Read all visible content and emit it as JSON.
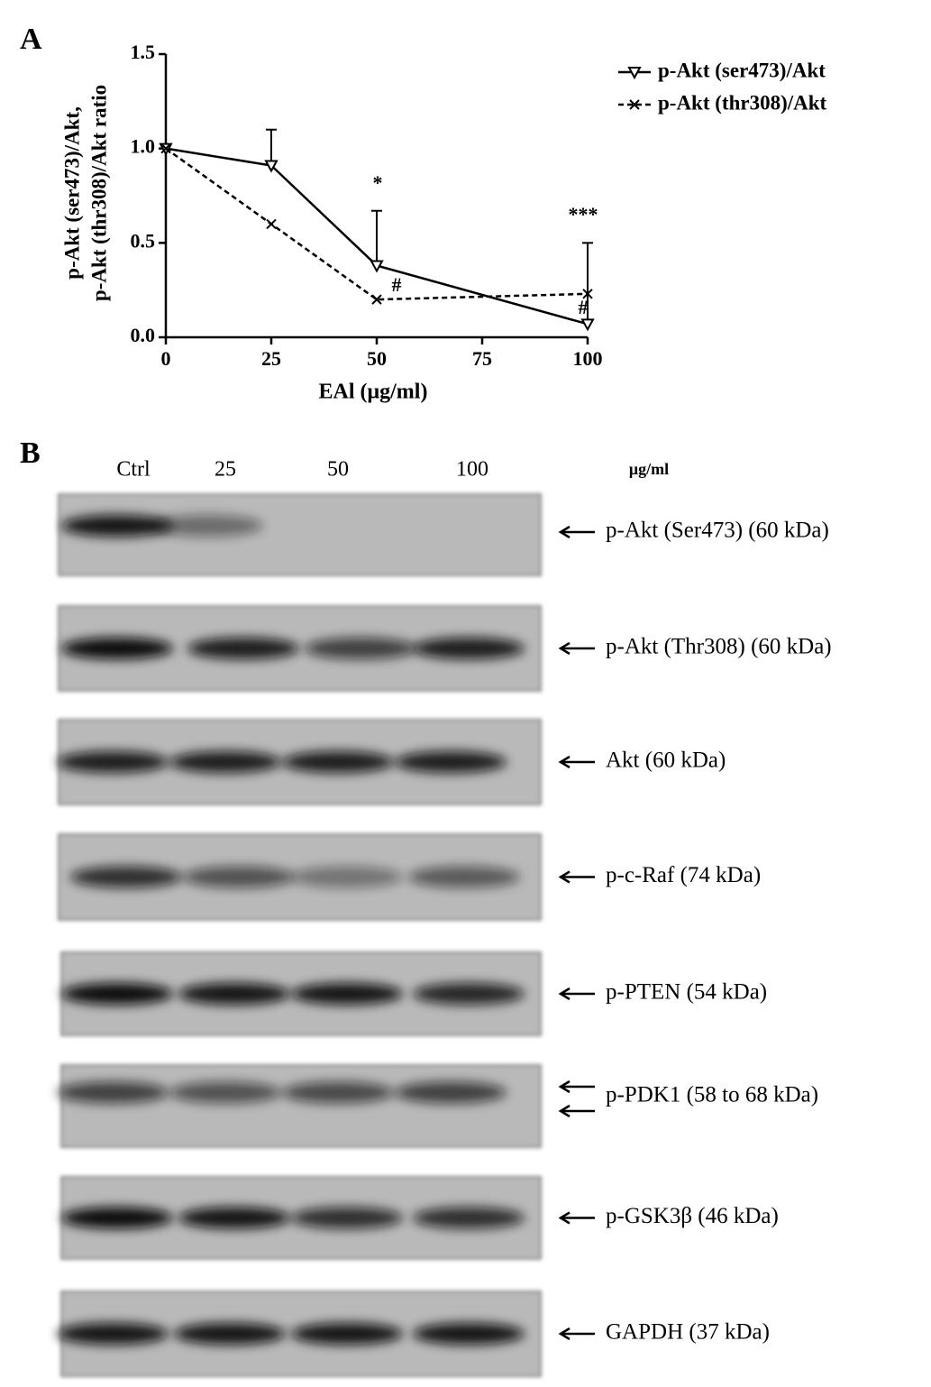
{
  "chart_data": {
    "type": "line",
    "panel_label": "A",
    "x": [
      0,
      25,
      50,
      100
    ],
    "series": [
      {
        "name": "p-Akt (ser473)/Akt",
        "color": "#000000",
        "dash": false,
        "marker": "triangle-down",
        "values": [
          1.0,
          0.91,
          0.38,
          0.07
        ],
        "errors": [
          0,
          0.19,
          0.29,
          0.43
        ]
      },
      {
        "name": "p-Akt (thr308)/Akt",
        "color": "#000000",
        "dash": true,
        "marker": "x",
        "values": [
          1.0,
          0.6,
          0.2,
          0.23
        ]
      }
    ],
    "xlim": [
      0,
      100
    ],
    "xticks": [
      0,
      25,
      50,
      75,
      100
    ],
    "ylim": [
      0,
      1.5
    ],
    "yticks": [
      {
        "value": 0,
        "label": "0.0"
      },
      {
        "value": 0.5,
        "label": "0.5"
      },
      {
        "value": 1.0,
        "label": "1.0"
      },
      {
        "value": 1.5,
        "label": "1.5"
      }
    ],
    "xlabel": "EAl (μg/ml)",
    "ylabel": [
      "p-Akt (ser473)/Akt,",
      "p-Akt (thr308)/Akt ratio"
    ],
    "annotations": [
      "*",
      "#",
      "***",
      "#"
    ],
    "legend": "upper right",
    "grid": false
  },
  "blot": {
    "panel_label": "B",
    "lanes": [
      "Ctrl",
      "25",
      "50",
      "100"
    ],
    "unit": "μg/ml",
    "bands": [
      "p-Akt (Ser473) (60 kDa)",
      "p-Akt (Thr308) (60 kDa)",
      "Akt (60 kDa)",
      "p-c-Raf (74 kDa)",
      "p-PTEN (54 kDa)",
      "p-PDK1 (58 to 68 kDa)",
      "p-GSK3β (46 kDa)",
      "GAPDH (37 kDa)"
    ]
  }
}
